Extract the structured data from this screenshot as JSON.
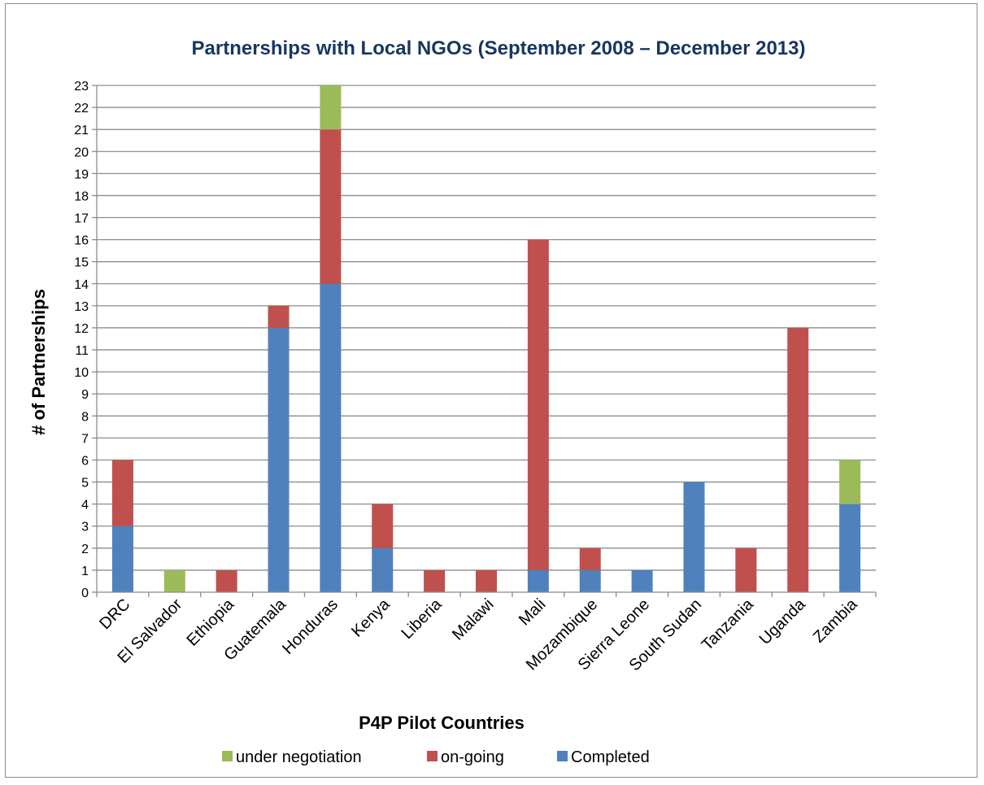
{
  "chart_data": {
    "type": "bar",
    "stacked": true,
    "title": "Partnerships with Local NGOs (September 2008 – December 2013)",
    "xlabel": "P4P Pilot Countries",
    "ylabel": "# of Partnerships",
    "ylim": [
      0,
      23
    ],
    "y_ticks": [
      0,
      1,
      2,
      3,
      4,
      5,
      6,
      7,
      8,
      9,
      10,
      11,
      12,
      13,
      14,
      15,
      16,
      17,
      18,
      19,
      20,
      21,
      22,
      23
    ],
    "grid": true,
    "legend_position": "bottom",
    "categories": [
      "DRC",
      "El Salvador",
      "Ethiopia",
      "Guatemala",
      "Honduras",
      "Kenya",
      "Liberia",
      "Malawi",
      "Mali",
      "Mozambique",
      "Sierra Leone",
      "South Sudan",
      "Tanzania",
      "Uganda",
      "Zambia"
    ],
    "series": [
      {
        "name": "Completed",
        "color": "#4f81bd",
        "values": [
          3,
          0,
          0,
          12,
          14,
          2,
          0,
          0,
          1,
          1,
          1,
          5,
          0,
          0,
          4
        ]
      },
      {
        "name": "on-going",
        "color": "#c0504d",
        "values": [
          3,
          0,
          1,
          1,
          7,
          2,
          1,
          1,
          15,
          1,
          0,
          0,
          2,
          12,
          0
        ]
      },
      {
        "name": "under negotiation",
        "color": "#9bbb59",
        "values": [
          0,
          1,
          0,
          0,
          2,
          0,
          0,
          0,
          0,
          0,
          0,
          0,
          0,
          0,
          2
        ]
      }
    ],
    "legend_order": [
      "under negotiation",
      "on-going",
      "Completed"
    ]
  }
}
